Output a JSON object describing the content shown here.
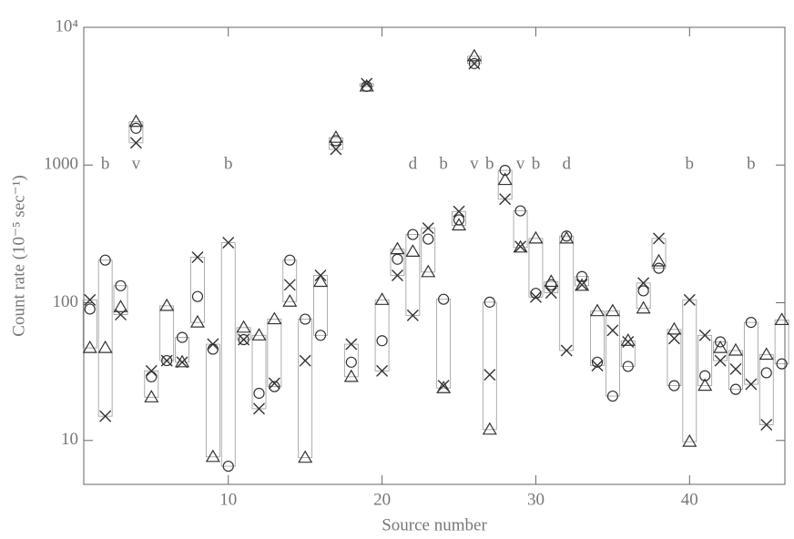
{
  "chart_data": {
    "type": "scatter",
    "xlabel": "Source number",
    "ylabel": "Count rate (10⁻⁵ sec⁻¹)",
    "x": [
      1,
      2,
      3,
      4,
      5,
      6,
      7,
      8,
      9,
      10,
      11,
      12,
      13,
      14,
      15,
      16,
      17,
      18,
      19,
      20,
      21,
      22,
      23,
      24,
      25,
      26,
      27,
      28,
      29,
      30,
      31,
      32,
      33,
      34,
      35,
      36,
      37,
      38,
      39,
      40,
      41,
      42,
      43,
      44,
      45,
      46
    ],
    "series": [
      {
        "marker": "circle",
        "color": "#333333",
        "values": [
          90,
          204,
          133,
          1850,
          29,
          38,
          56,
          111,
          46,
          6.5,
          54,
          22,
          24.6,
          204,
          76,
          58,
          1500,
          37,
          3720,
          53,
          207,
          313,
          290,
          106,
          400,
          5450,
          101,
          915,
          465,
          117,
          135,
          305,
          155,
          37,
          21,
          34.5,
          122,
          178,
          25,
          null,
          29.5,
          52,
          23.5,
          72,
          31,
          36
        ]
      },
      {
        "marker": "triangle",
        "color": "#333333",
        "values": [
          47,
          47,
          93,
          2060,
          20.6,
          95,
          37,
          72,
          7.6,
          null,
          66,
          58,
          76,
          102,
          7.5,
          142,
          1580,
          29,
          3720,
          105,
          245,
          235,
          167,
          24,
          365,
          6160,
          12,
          780,
          252,
          293,
          142,
          293,
          133,
          87,
          87,
          53,
          91,
          200,
          64,
          9.8,
          25,
          47,
          45,
          null,
          42,
          75
        ]
      },
      {
        "marker": "cross",
        "color": "#333333",
        "values": [
          105,
          15,
          82,
          1450,
          32,
          38,
          37,
          214,
          50,
          273,
          54,
          17,
          26,
          135,
          38,
          158,
          1300,
          50,
          3900,
          32,
          158,
          81,
          348,
          25,
          460,
          5450,
          30,
          565,
          256,
          110,
          118,
          45,
          135,
          35,
          63,
          52,
          139,
          293,
          55,
          105,
          58,
          38,
          33,
          25.6,
          13,
          null
        ]
      }
    ],
    "annotations": [
      {
        "x": 2,
        "text": "b"
      },
      {
        "x": 4,
        "text": "v"
      },
      {
        "x": 10,
        "text": "b"
      },
      {
        "x": 22,
        "text": "d"
      },
      {
        "x": 24,
        "text": "b"
      },
      {
        "x": 26,
        "text": "v"
      },
      {
        "x": 27,
        "text": "b"
      },
      {
        "x": 29,
        "text": "v"
      },
      {
        "x": 30,
        "text": "b"
      },
      {
        "x": 32,
        "text": "d"
      },
      {
        "x": 40,
        "text": "b"
      },
      {
        "x": 44,
        "text": "b"
      }
    ],
    "xlim": [
      0.6,
      46.2
    ],
    "xticks": [
      10,
      20,
      30,
      40
    ],
    "ylim": [
      4.8,
      10000
    ],
    "ylog": true,
    "yticks": [
      10,
      100,
      1000,
      {
        "value": 10000,
        "label": "10⁴"
      }
    ]
  }
}
